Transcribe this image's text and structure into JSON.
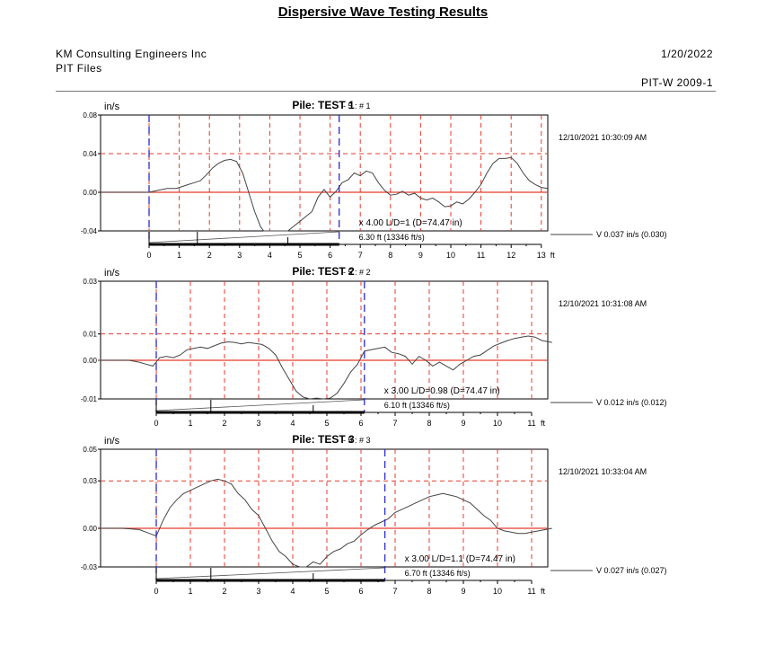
{
  "report": {
    "title": "Dispersive Wave Testing Results",
    "company": "KM Consulting Engineers Inc",
    "section": "PIT Files",
    "date": "1/20/2022",
    "product": "PIT-W   2009-1"
  },
  "colors": {
    "trace": "#444444",
    "zero_line": "#e53b2c",
    "grid": "#e53b2c",
    "marker": "#2a2ad0",
    "frame": "#000000"
  },
  "chart_data": [
    {
      "type": "line",
      "title": "Pile: TEST 1",
      "title_suffix": "- 5 : # 1",
      "ylabel": "in/s",
      "xlabel": "ft",
      "ylim": [
        -0.04,
        0.08
      ],
      "yticks": [
        "0.08",
        "0.04",
        "0.00",
        "-0.04"
      ],
      "xticks": [
        "0",
        "1",
        "2",
        "3",
        "4",
        "5",
        "6",
        "7",
        "8",
        "9",
        "10",
        "11",
        "12",
        "13"
      ],
      "x_unit_label": "ft",
      "timestamp": "12/10/2021 10:30:09 AM",
      "amplification": "x 4.00  L/D=1 (D=74.47 in)",
      "length_label": "6.30 ft (13346 ft/s)",
      "velocity_label": "V  0.037 in/s  (0.030)",
      "marker_x": [
        0,
        6.3
      ],
      "series": [
        {
          "name": "velocity",
          "x": [
            -1.6,
            -0.5,
            0,
            0.3,
            0.6,
            0.9,
            1.1,
            1.3,
            1.5,
            1.7,
            1.9,
            2.1,
            2.3,
            2.5,
            2.7,
            2.9,
            3.1,
            3.3,
            3.5,
            3.7,
            3.8,
            3.9,
            4.0,
            4.2,
            4.4,
            4.6,
            4.8,
            5.0,
            5.2,
            5.4,
            5.6,
            5.8,
            6.0,
            6.2,
            6.4,
            6.6,
            6.8,
            7.0,
            7.2,
            7.4,
            7.6,
            7.8,
            8.0,
            8.2,
            8.4,
            8.6,
            8.8,
            9.0,
            9.2,
            9.4,
            9.6,
            9.8,
            10.0,
            10.2,
            10.4,
            10.6,
            10.8,
            11.0,
            11.2,
            11.4,
            11.6,
            11.8,
            12.0,
            12.2,
            12.4,
            12.6,
            12.8,
            13.0,
            13.2
          ],
          "values": [
            0,
            0,
            0,
            0.002,
            0.004,
            0.004,
            0.006,
            0.008,
            0.01,
            0.012,
            0.018,
            0.025,
            0.03,
            0.033,
            0.034,
            0.032,
            0.02,
            0,
            -0.02,
            -0.036,
            -0.045,
            -0.05,
            -0.052,
            -0.05,
            -0.048,
            -0.045,
            -0.035,
            -0.03,
            -0.025,
            -0.02,
            -0.005,
            0.003,
            -0.005,
            0.001,
            0.01,
            0.013,
            0.02,
            0.017,
            0.022,
            0.02,
            0.01,
            0.002,
            -0.003,
            -0.002,
            0.001,
            -0.003,
            -0.001,
            -0.006,
            -0.008,
            -0.006,
            -0.01,
            -0.015,
            -0.014,
            -0.01,
            -0.012,
            -0.007,
            0.0,
            0.008,
            0.02,
            0.03,
            0.035,
            0.035,
            0.036,
            0.03,
            0.02,
            0.012,
            0.008,
            0.005,
            0.004
          ]
        }
      ]
    },
    {
      "type": "line",
      "title": "Pile: TEST 2",
      "title_suffix": "- 5 : # 2",
      "ylabel": "in/s",
      "xlabel": "ft",
      "ylim": [
        -0.01,
        0.03
      ],
      "yticks": [
        "0.03",
        "0.01",
        "0.00",
        "-0.01"
      ],
      "xticks": [
        "0",
        "1",
        "2",
        "3",
        "4",
        "5",
        "6",
        "7",
        "8",
        "9",
        "10",
        "11"
      ],
      "x_unit_label": "ft",
      "timestamp": "12/10/2021 10:31:08 AM",
      "amplification": "x 3.00  L/D=0.98 (D=74.47 in)",
      "length_label": "6.10 ft (13346 ft/s)",
      "velocity_label": "V  0.012 in/s  (0.012)",
      "marker_x": [
        0,
        6.1
      ],
      "series": [
        {
          "name": "velocity",
          "x": [
            -1.7,
            -1.2,
            -0.8,
            -0.5,
            -0.3,
            -0.1,
            0.1,
            0.3,
            0.5,
            0.7,
            0.9,
            1.1,
            1.3,
            1.5,
            1.7,
            1.9,
            2.1,
            2.3,
            2.5,
            2.7,
            2.9,
            3.1,
            3.3,
            3.5,
            3.7,
            3.9,
            4.1,
            4.3,
            4.5,
            4.7,
            4.9,
            5.1,
            5.3,
            5.5,
            5.7,
            5.9,
            6.1,
            6.3,
            6.5,
            6.7,
            6.9,
            7.1,
            7.3,
            7.5,
            7.7,
            7.9,
            8.1,
            8.3,
            8.5,
            8.7,
            8.9,
            9.1,
            9.3,
            9.5,
            9.7,
            9.9,
            10.1,
            10.3,
            10.5,
            10.7,
            10.9,
            11.1,
            11.3,
            11.6
          ],
          "values": [
            0,
            0,
            0,
            -0.0005,
            -0.001,
            -0.0015,
            0.001,
            0.0015,
            0.001,
            0.002,
            0.004,
            0.0045,
            0.005,
            0.0045,
            0.0055,
            0.0065,
            0.007,
            0.0068,
            0.0062,
            0.0068,
            0.0064,
            0.006,
            0.0045,
            0.002,
            -0.002,
            -0.005,
            -0.008,
            -0.0095,
            -0.01,
            -0.0098,
            -0.01,
            -0.0098,
            -0.0085,
            -0.006,
            -0.003,
            -0.001,
            0.0035,
            0.004,
            0.0045,
            0.005,
            0.003,
            0.0025,
            0.0015,
            -0.001,
            0.0015,
            0.0,
            -0.0015,
            -0.0005,
            -0.0015,
            -0.0025,
            -0.001,
            0.0,
            0.0015,
            0.002,
            0.0038,
            0.0055,
            0.0065,
            0.0075,
            0.0083,
            0.0088,
            0.0092,
            0.0088,
            0.0075,
            0.0068
          ]
        }
      ]
    },
    {
      "type": "line",
      "title": "Pile: TEST 3",
      "title_suffix": "- 5 : # 3",
      "ylabel": "in/s",
      "xlabel": "ft",
      "ylim": [
        -0.03,
        0.05
      ],
      "yticks": [
        "0.05",
        "0.03",
        "0.00",
        "-0.03"
      ],
      "xticks": [
        "0",
        "1",
        "2",
        "3",
        "4",
        "5",
        "6",
        "7",
        "8",
        "9",
        "10",
        "11"
      ],
      "x_unit_label": "ft",
      "timestamp": "12/10/2021 10:33:04 AM",
      "amplification": "x 3.00  L/D=1.1 (D=74.47 in)",
      "length_label": "6.70 ft (13346 ft/s)",
      "velocity_label": "V  0.027 in/s  (0.027)",
      "marker_x": [
        0,
        6.7
      ],
      "series": [
        {
          "name": "velocity",
          "x": [
            -1.6,
            -1.0,
            -0.5,
            -0.2,
            0,
            0.2,
            0.4,
            0.6,
            0.8,
            1.0,
            1.2,
            1.4,
            1.6,
            1.8,
            2.0,
            2.2,
            2.4,
            2.6,
            2.8,
            3.0,
            3.2,
            3.4,
            3.6,
            3.8,
            4.0,
            4.2,
            4.4,
            4.6,
            4.8,
            5.0,
            5.2,
            5.4,
            5.6,
            5.8,
            6.0,
            6.2,
            6.4,
            6.6,
            6.8,
            7.0,
            7.2,
            7.4,
            7.6,
            7.8,
            8.0,
            8.2,
            8.4,
            8.6,
            8.8,
            9.0,
            9.2,
            9.4,
            9.6,
            9.8,
            10.0,
            10.2,
            10.4,
            10.6,
            10.8,
            11.0,
            11.2,
            11.6
          ],
          "values": [
            0,
            0,
            -0.001,
            -0.004,
            -0.006,
            0.005,
            0.013,
            0.018,
            0.022,
            0.024,
            0.026,
            0.028,
            0.03,
            0.031,
            0.03,
            0.028,
            0.022,
            0.018,
            0.012,
            0.008,
            0.0,
            -0.01,
            -0.018,
            -0.022,
            -0.028,
            -0.03,
            -0.031,
            -0.026,
            -0.028,
            -0.022,
            -0.018,
            -0.016,
            -0.012,
            -0.01,
            -0.005,
            -0.001,
            0.002,
            0.004,
            0.006,
            0.01,
            0.012,
            0.014,
            0.016,
            0.018,
            0.02,
            0.021,
            0.022,
            0.021,
            0.02,
            0.018,
            0.016,
            0.012,
            0.008,
            0.005,
            0.0,
            -0.002,
            -0.003,
            -0.004,
            -0.004,
            -0.003,
            -0.002,
            0.0
          ]
        }
      ]
    }
  ]
}
